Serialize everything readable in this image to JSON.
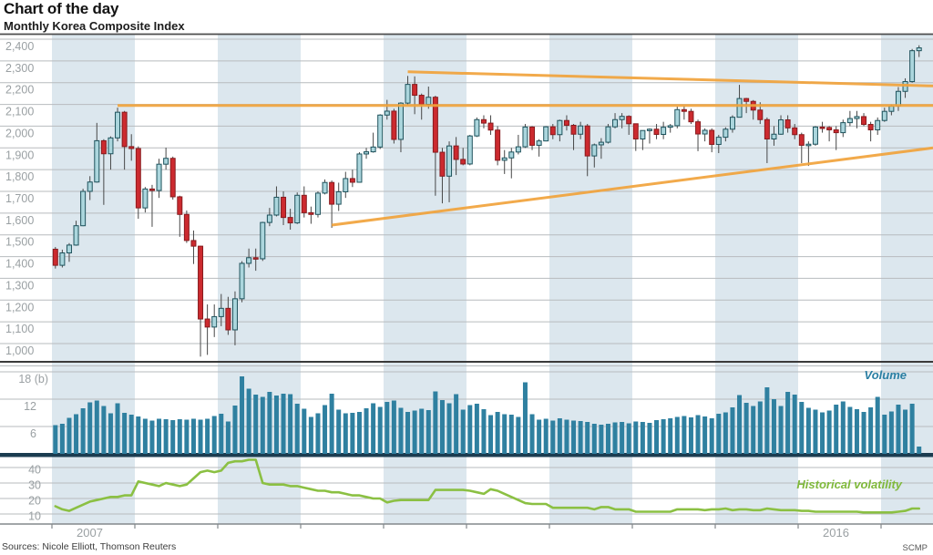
{
  "header": {
    "title": "Chart of the day",
    "subtitle": "Monthly Korea Composite Index"
  },
  "labels": {
    "volume": "Volume",
    "volatility": "Historical volatility"
  },
  "footer": {
    "sources": "Sources: Nicole Elliott, Thomson Reuters",
    "credit": "SCMP"
  },
  "colors": {
    "stripe": "#dce7ee",
    "grid": "#b7bbbe",
    "rule_top": "#4d4d4d",
    "rule_price_bottom": "#3a3a3a",
    "axis_dark": "#1b3c50",
    "axis_mid": "#83888c",
    "tick_text": "#9aa0a3",
    "up_fill": "#abd6dd",
    "up_stroke": "#1e525c",
    "down_fill": "#cc2a2f",
    "down_stroke": "#871b1e",
    "wick": "#474747",
    "volume_bar": "#2f80a0",
    "volatility_line": "#8bc043",
    "annotation": "#f1a33c"
  },
  "chart_data": [
    {
      "type": "candlestick",
      "panel": "price",
      "title": "Monthly Korea Composite Index",
      "x_start": "2007-01",
      "x_end": "2017-06",
      "x_freq": "monthly",
      "xlabels": [
        {
          "text": "2007",
          "year": 2007
        },
        {
          "text": "2016",
          "year": 2016
        }
      ],
      "shaded_years": [
        2007,
        2009,
        2011,
        2013,
        2015,
        2017
      ],
      "ylim": [
        940,
        2400
      ],
      "yticks": [
        2400,
        2300,
        2200,
        2100,
        2000,
        1900,
        1800,
        1700,
        1600,
        1500,
        1400,
        1300,
        1200,
        1100,
        1000
      ],
      "ytick_labels": [
        "2,400",
        "2,300",
        "2,200",
        "2,100",
        "2,000",
        "1,900",
        "1,800",
        "1,700",
        "1,600",
        "1,500",
        "1,400",
        "1,300",
        "1,200",
        "1,100",
        "1,000"
      ],
      "annotations": [
        {
          "name": "horizontal-resistance",
          "start_month": "2007-10",
          "start_index": 9,
          "start_value": 2095,
          "end_value": 2095
        },
        {
          "name": "upper-trendline",
          "start_month": "2011-04",
          "start_index": 51,
          "start_value": 2250,
          "end_value": 2185
        },
        {
          "name": "lower-trendline",
          "start_month": "2010-05",
          "start_index": 40,
          "start_value": 1545,
          "end_value": 1900
        }
      ],
      "candles": [
        [
          1434,
          1444,
          1345,
          1360
        ],
        [
          1360,
          1432,
          1350,
          1417
        ],
        [
          1417,
          1462,
          1376,
          1453
        ],
        [
          1453,
          1565,
          1450,
          1542
        ],
        [
          1542,
          1712,
          1540,
          1700
        ],
        [
          1700,
          1770,
          1660,
          1743
        ],
        [
          1743,
          2015,
          1740,
          1933
        ],
        [
          1933,
          1940,
          1638,
          1873
        ],
        [
          1873,
          1953,
          1800,
          1946
        ],
        [
          1946,
          2085,
          1930,
          2064
        ],
        [
          2064,
          2070,
          1800,
          1906
        ],
        [
          1906,
          1963,
          1841,
          1897
        ],
        [
          1897,
          1907,
          1574,
          1624
        ],
        [
          1624,
          1720,
          1603,
          1711
        ],
        [
          1711,
          1730,
          1537,
          1704
        ],
        [
          1704,
          1850,
          1670,
          1825
        ],
        [
          1825,
          1901,
          1800,
          1852
        ],
        [
          1852,
          1860,
          1662,
          1675
        ],
        [
          1675,
          1680,
          1491,
          1594
        ],
        [
          1594,
          1612,
          1463,
          1474
        ],
        [
          1474,
          1520,
          1366,
          1448
        ],
        [
          1448,
          1450,
          940,
          1113
        ],
        [
          1113,
          1180,
          948,
          1076
        ],
        [
          1076,
          1180,
          1030,
          1124
        ],
        [
          1124,
          1228,
          1080,
          1162
        ],
        [
          1162,
          1215,
          1040,
          1063
        ],
        [
          1063,
          1240,
          992,
          1206
        ],
        [
          1206,
          1379,
          1190,
          1369
        ],
        [
          1369,
          1437,
          1350,
          1395
        ],
        [
          1395,
          1437,
          1335,
          1390
        ],
        [
          1390,
          1560,
          1380,
          1557
        ],
        [
          1557,
          1624,
          1540,
          1591
        ],
        [
          1591,
          1723,
          1585,
          1673
        ],
        [
          1673,
          1700,
          1545,
          1580
        ],
        [
          1580,
          1620,
          1524,
          1555
        ],
        [
          1555,
          1695,
          1550,
          1682
        ],
        [
          1682,
          1723,
          1580,
          1602
        ],
        [
          1602,
          1630,
          1551,
          1594
        ],
        [
          1594,
          1700,
          1580,
          1692
        ],
        [
          1692,
          1755,
          1686,
          1741
        ],
        [
          1741,
          1750,
          1532,
          1641
        ],
        [
          1641,
          1740,
          1610,
          1698
        ],
        [
          1698,
          1790,
          1670,
          1759
        ],
        [
          1759,
          1800,
          1720,
          1742
        ],
        [
          1742,
          1880,
          1740,
          1872
        ],
        [
          1872,
          1900,
          1850,
          1882
        ],
        [
          1882,
          1970,
          1878,
          1904
        ],
        [
          1904,
          2055,
          1895,
          2051
        ],
        [
          2051,
          2121,
          2030,
          2069
        ],
        [
          2069,
          2080,
          1920,
          1939
        ],
        [
          1939,
          2110,
          1880,
          2106
        ],
        [
          2106,
          2231,
          2100,
          2192
        ],
        [
          2192,
          2229,
          2055,
          2142
        ],
        [
          2142,
          2150,
          2030,
          2100
        ],
        [
          2100,
          2182,
          2080,
          2133
        ],
        [
          2133,
          2140,
          1680,
          1880
        ],
        [
          1880,
          1900,
          1645,
          1770
        ],
        [
          1770,
          1930,
          1650,
          1909
        ],
        [
          1909,
          1950,
          1775,
          1847
        ],
        [
          1847,
          1900,
          1820,
          1826
        ],
        [
          1826,
          1960,
          1820,
          1955
        ],
        [
          1955,
          2040,
          1950,
          2030
        ],
        [
          2030,
          2050,
          1990,
          2014
        ],
        [
          2014,
          2050,
          1960,
          1982
        ],
        [
          1982,
          2000,
          1820,
          1843
        ],
        [
          1843,
          1890,
          1780,
          1854
        ],
        [
          1854,
          1900,
          1760,
          1881
        ],
        [
          1881,
          1960,
          1870,
          1905
        ],
        [
          1905,
          2010,
          1900,
          1996
        ],
        [
          1996,
          2000,
          1890,
          1912
        ],
        [
          1912,
          1940,
          1860,
          1932
        ],
        [
          1932,
          2000,
          1930,
          1997
        ],
        [
          1997,
          2010,
          1940,
          1961
        ],
        [
          1961,
          2030,
          1930,
          2026
        ],
        [
          2026,
          2050,
          1980,
          2004
        ],
        [
          2004,
          2010,
          1890,
          1963
        ],
        [
          1963,
          2020,
          1940,
          2001
        ],
        [
          2001,
          2010,
          1770,
          1863
        ],
        [
          1863,
          1920,
          1810,
          1914
        ],
        [
          1914,
          1945,
          1850,
          1926
        ],
        [
          1926,
          2010,
          1920,
          1997
        ],
        [
          1997,
          2060,
          1990,
          2030
        ],
        [
          2030,
          2060,
          1990,
          2045
        ],
        [
          2045,
          2050,
          1960,
          2011
        ],
        [
          2011,
          2012,
          1886,
          1941
        ],
        [
          1941,
          1980,
          1890,
          1980
        ],
        [
          1980,
          1990,
          1920,
          1986
        ],
        [
          1986,
          2010,
          1940,
          1962
        ],
        [
          1962,
          2020,
          1940,
          1995
        ],
        [
          1995,
          2010,
          1970,
          2002
        ],
        [
          2002,
          2090,
          1990,
          2076
        ],
        [
          2076,
          2095,
          2030,
          2068
        ],
        [
          2068,
          2080,
          2010,
          2020
        ],
        [
          2020,
          2030,
          1885,
          1964
        ],
        [
          1964,
          1990,
          1930,
          1981
        ],
        [
          1981,
          1990,
          1880,
          1916
        ],
        [
          1916,
          1960,
          1876,
          1949
        ],
        [
          1949,
          1995,
          1930,
          1986
        ],
        [
          1986,
          2050,
          1970,
          2041
        ],
        [
          2041,
          2190,
          2040,
          2127
        ],
        [
          2127,
          2130,
          2060,
          2114
        ],
        [
          2114,
          2120,
          2030,
          2074
        ],
        [
          2074,
          2110,
          2010,
          2030
        ],
        [
          2030,
          2040,
          1830,
          1941
        ],
        [
          1941,
          2000,
          1910,
          1963
        ],
        [
          1963,
          2050,
          1960,
          2029
        ],
        [
          2029,
          2050,
          1970,
          1992
        ],
        [
          1992,
          2010,
          1940,
          1961
        ],
        [
          1961,
          1970,
          1830,
          1912
        ],
        [
          1912,
          1930,
          1817,
          1917
        ],
        [
          1917,
          2000,
          1910,
          1996
        ],
        [
          1996,
          2020,
          1970,
          1994
        ],
        [
          1994,
          2000,
          1930,
          1983
        ],
        [
          1983,
          2000,
          1890,
          1970
        ],
        [
          1970,
          2030,
          1950,
          2016
        ],
        [
          2016,
          2070,
          2000,
          2035
        ],
        [
          2035,
          2070,
          1990,
          2044
        ],
        [
          2044,
          2060,
          2000,
          2008
        ],
        [
          2008,
          2020,
          1930,
          1983
        ],
        [
          1983,
          2040,
          1960,
          2026
        ],
        [
          2026,
          2085,
          2020,
          2068
        ],
        [
          2068,
          2100,
          2050,
          2092
        ],
        [
          2092,
          2180,
          2070,
          2160
        ],
        [
          2160,
          2220,
          2130,
          2205
        ],
        [
          2205,
          2355,
          2200,
          2347
        ],
        [
          2347,
          2372,
          2318,
          2360
        ]
      ]
    },
    {
      "type": "bar",
      "panel": "volume",
      "name": "Volume",
      "unit": "(b)",
      "yticks": [
        6,
        12,
        18
      ],
      "ytick_labels": [
        "6",
        "12",
        "18 (b)"
      ],
      "values": [
        6.3,
        6.6,
        7.9,
        8.7,
        10.0,
        11.3,
        11.7,
        10.5,
        8.9,
        11.1,
        9.0,
        8.6,
        8.2,
        7.7,
        7.3,
        7.7,
        7.6,
        7.4,
        7.6,
        7.5,
        7.7,
        7.5,
        7.7,
        8.3,
        8.8,
        7.1,
        10.6,
        17.0,
        14.3,
        13.0,
        12.5,
        13.6,
        12.8,
        13.2,
        13.1,
        11.0,
        9.9,
        8.1,
        8.9,
        10.7,
        13.2,
        9.7,
        8.9,
        9.0,
        9.2,
        10.0,
        11.1,
        10.3,
        11.4,
        11.7,
        10.1,
        9.2,
        9.5,
        9.9,
        9.6,
        13.7,
        11.8,
        11.1,
        13.1,
        9.7,
        10.7,
        11.0,
        9.8,
        8.5,
        9.2,
        8.7,
        8.6,
        8.1,
        15.7,
        8.7,
        7.5,
        7.7,
        7.3,
        7.8,
        7.5,
        7.3,
        7.2,
        7.0,
        6.6,
        6.4,
        6.6,
        6.9,
        7.0,
        6.7,
        7.1,
        7.0,
        6.8,
        7.4,
        7.6,
        7.8,
        8.1,
        8.3,
        8.0,
        8.5,
        8.2,
        7.8,
        8.8,
        9.1,
        10.2,
        12.9,
        11.2,
        10.5,
        11.5,
        14.6,
        12.0,
        10.5,
        13.6,
        13.0,
        11.4,
        10.1,
        9.7,
        9.1,
        9.5,
        10.8,
        11.5,
        10.3,
        9.8,
        9.2,
        10.2,
        12.5,
        8.6,
        9.3,
        10.8,
        9.7,
        11.0,
        1.6
      ]
    },
    {
      "type": "line",
      "panel": "volatility",
      "name": "Historical volatility",
      "yticks": [
        10,
        20,
        30,
        40
      ],
      "ytick_labels": [
        "10",
        "20",
        "30",
        "40"
      ],
      "values": [
        15,
        13,
        12,
        14,
        16,
        18,
        19,
        20,
        21,
        21,
        22,
        22,
        31,
        30,
        29,
        28,
        30,
        29,
        28,
        29,
        33,
        37,
        38,
        37,
        38,
        43,
        44,
        44,
        45,
        45,
        30,
        29,
        29,
        29,
        28,
        28,
        27,
        26,
        25,
        25,
        24,
        24,
        23,
        22,
        22,
        21,
        20,
        20,
        17.5,
        18.5,
        19,
        19,
        19,
        19,
        19,
        25.5,
        25.5,
        25.5,
        25.5,
        25.5,
        25,
        24,
        23,
        26,
        25,
        23,
        21,
        19,
        17,
        16.5,
        16.5,
        16.5,
        14,
        14,
        14,
        14,
        14,
        14,
        13,
        14.5,
        14.5,
        13,
        13,
        13,
        11.5,
        11.5,
        11.5,
        11.5,
        11.5,
        11.5,
        13,
        13,
        13,
        13,
        12.5,
        13,
        13,
        13.5,
        12.5,
        13,
        13,
        12.5,
        12.5,
        13.5,
        13,
        12.5,
        12.5,
        12.5,
        12,
        12,
        11.5,
        11.5,
        11.5,
        11.5,
        11.5,
        11.5,
        11.5,
        11,
        11,
        11,
        11,
        11,
        11.5,
        12,
        13.5,
        13.5
      ]
    }
  ]
}
